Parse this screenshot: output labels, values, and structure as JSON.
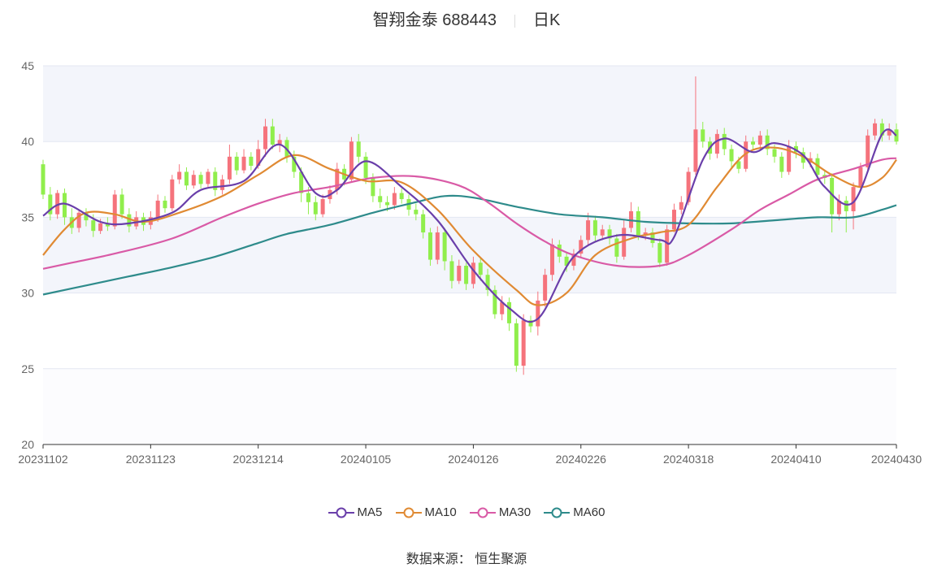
{
  "header": {
    "name": "智翔金泰 688443",
    "period": "日K"
  },
  "source_text": "数据来源： 恒生聚源",
  "colors": {
    "up": "#f5737c",
    "down": "#90ee4c",
    "MA5": "#6a3faa",
    "MA10": "#e08a33",
    "MA30": "#d95aa6",
    "MA60": "#2e8b8b",
    "band": "#f3f5fb",
    "grid": "#e3e7f2",
    "axis": "#333333"
  },
  "legend": [
    {
      "label": "MA5",
      "key": "MA5"
    },
    {
      "label": "MA10",
      "key": "MA10"
    },
    {
      "label": "MA30",
      "key": "MA30"
    },
    {
      "label": "MA60",
      "key": "MA60"
    }
  ],
  "chart_data": {
    "type": "candlestick",
    "ylim": [
      20,
      45
    ],
    "yticks": [
      20,
      25,
      30,
      35,
      40,
      45
    ],
    "xticks": [
      {
        "i": 0,
        "label": "20231102"
      },
      {
        "i": 15,
        "label": "20231123"
      },
      {
        "i": 30,
        "label": "20231214"
      },
      {
        "i": 45,
        "label": "20240105"
      },
      {
        "i": 60,
        "label": "20240126"
      },
      {
        "i": 75,
        "label": "20240226"
      },
      {
        "i": 90,
        "label": "20240318"
      },
      {
        "i": 105,
        "label": "20240410"
      },
      {
        "i": 119,
        "label": "20240430"
      }
    ],
    "count": 120,
    "candles": [
      [
        38.5,
        36.5,
        38.8,
        36.2
      ],
      [
        36.5,
        35.2,
        37.0,
        34.8
      ],
      [
        35.2,
        36.6,
        36.8,
        34.9
      ],
      [
        36.6,
        35.0,
        36.9,
        34.5
      ],
      [
        35.0,
        34.3,
        35.6,
        33.9
      ],
      [
        34.3,
        35.3,
        35.5,
        34.0
      ],
      [
        35.3,
        34.8,
        35.6,
        34.4
      ],
      [
        34.8,
        34.1,
        35.2,
        33.7
      ],
      [
        34.1,
        34.6,
        34.9,
        33.9
      ],
      [
        34.6,
        34.4,
        35.0,
        34.1
      ],
      [
        34.4,
        36.5,
        36.8,
        34.2
      ],
      [
        36.5,
        35.2,
        36.9,
        34.9
      ],
      [
        35.2,
        34.4,
        35.6,
        34.0
      ],
      [
        34.4,
        35.0,
        35.4,
        34.2
      ],
      [
        35.0,
        34.5,
        35.3,
        34.1
      ],
      [
        34.5,
        35.0,
        35.4,
        34.2
      ],
      [
        35.0,
        36.1,
        36.5,
        34.7
      ],
      [
        36.1,
        35.6,
        36.4,
        35.3
      ],
      [
        35.6,
        37.5,
        37.8,
        35.4
      ],
      [
        37.5,
        38.0,
        38.5,
        37.2
      ],
      [
        38.0,
        37.1,
        38.3,
        36.8
      ],
      [
        37.1,
        37.8,
        38.1,
        36.9
      ],
      [
        37.8,
        37.2,
        38.0,
        36.9
      ],
      [
        37.2,
        38.0,
        38.2,
        37.0
      ],
      [
        38.0,
        36.8,
        38.3,
        36.4
      ],
      [
        36.8,
        37.5,
        37.8,
        36.5
      ],
      [
        37.5,
        39.0,
        39.8,
        37.2
      ],
      [
        39.0,
        38.1,
        39.3,
        37.8
      ],
      [
        38.1,
        39.0,
        39.5,
        37.9
      ],
      [
        39.0,
        38.4,
        39.3,
        38.1
      ],
      [
        38.4,
        39.5,
        40.1,
        38.2
      ],
      [
        39.5,
        41.0,
        41.5,
        39.0
      ],
      [
        41.0,
        39.8,
        41.5,
        39.5
      ],
      [
        39.8,
        40.1,
        40.5,
        39.3
      ],
      [
        40.1,
        39.0,
        40.3,
        38.6
      ],
      [
        39.0,
        38.0,
        39.4,
        37.6
      ],
      [
        38.0,
        36.6,
        38.3,
        36.0
      ],
      [
        36.6,
        36.0,
        37.0,
        35.2
      ],
      [
        36.0,
        35.2,
        36.4,
        34.8
      ],
      [
        35.2,
        36.2,
        36.5,
        35.0
      ],
      [
        36.2,
        36.8,
        37.1,
        35.9
      ],
      [
        36.8,
        38.2,
        38.6,
        36.5
      ],
      [
        38.2,
        37.5,
        38.5,
        37.1
      ],
      [
        37.5,
        40.0,
        40.3,
        37.3
      ],
      [
        40.0,
        39.0,
        40.5,
        38.6
      ],
      [
        39.0,
        37.6,
        39.3,
        37.2
      ],
      [
        37.6,
        36.4,
        37.9,
        36.0
      ],
      [
        36.4,
        36.0,
        36.9,
        35.6
      ],
      [
        36.0,
        35.8,
        36.4,
        35.4
      ],
      [
        35.8,
        36.6,
        37.0,
        35.5
      ],
      [
        36.6,
        36.2,
        36.9,
        35.9
      ],
      [
        36.2,
        35.5,
        36.5,
        35.1
      ],
      [
        35.5,
        35.2,
        35.9,
        34.8
      ],
      [
        35.2,
        34.0,
        35.5,
        33.6
      ],
      [
        34.0,
        32.2,
        34.3,
        31.8
      ],
      [
        32.2,
        34.0,
        34.4,
        31.9
      ],
      [
        34.0,
        32.1,
        34.3,
        31.5
      ],
      [
        32.1,
        30.8,
        32.5,
        30.3
      ],
      [
        30.8,
        31.8,
        32.2,
        30.6
      ],
      [
        31.8,
        30.6,
        32.0,
        30.2
      ],
      [
        30.6,
        32.0,
        32.4,
        30.3
      ],
      [
        32.0,
        31.2,
        32.3,
        30.8
      ],
      [
        31.2,
        30.2,
        31.6,
        29.8
      ],
      [
        30.2,
        28.6,
        30.5,
        28.3
      ],
      [
        28.6,
        29.4,
        29.8,
        28.2
      ],
      [
        29.4,
        28.0,
        29.7,
        27.5
      ],
      [
        28.0,
        25.2,
        28.3,
        24.8
      ],
      [
        25.2,
        28.2,
        28.6,
        24.6
      ],
      [
        28.2,
        27.8,
        28.5,
        27.4
      ],
      [
        27.8,
        29.5,
        30.1,
        27.2
      ],
      [
        29.5,
        31.2,
        31.6,
        29.1
      ],
      [
        31.2,
        33.2,
        33.6,
        30.8
      ],
      [
        33.2,
        32.4,
        33.5,
        32.0
      ],
      [
        32.4,
        31.8,
        32.7,
        31.4
      ],
      [
        31.8,
        32.6,
        32.9,
        31.5
      ],
      [
        32.6,
        33.5,
        33.8,
        32.3
      ],
      [
        33.5,
        34.8,
        35.3,
        33.2
      ],
      [
        34.8,
        33.8,
        35.1,
        33.4
      ],
      [
        33.8,
        34.2,
        34.5,
        33.5
      ],
      [
        34.2,
        33.6,
        34.5,
        33.2
      ],
      [
        33.6,
        32.4,
        33.9,
        32.0
      ],
      [
        32.4,
        34.3,
        34.8,
        32.2
      ],
      [
        34.3,
        35.4,
        36.0,
        34.0
      ],
      [
        35.4,
        33.8,
        35.7,
        33.5
      ],
      [
        33.8,
        34.0,
        34.3,
        33.5
      ],
      [
        34.0,
        33.3,
        34.3,
        33.0
      ],
      [
        33.3,
        32.0,
        33.6,
        31.7
      ],
      [
        32.0,
        34.2,
        34.5,
        31.8
      ],
      [
        34.2,
        35.5,
        35.9,
        34.0
      ],
      [
        35.5,
        36.0,
        36.4,
        35.2
      ],
      [
        36.0,
        38.0,
        38.3,
        35.8
      ],
      [
        38.0,
        40.8,
        44.3,
        37.8
      ],
      [
        40.8,
        40.0,
        41.3,
        39.6
      ],
      [
        40.0,
        39.2,
        40.3,
        38.8
      ],
      [
        39.2,
        40.5,
        40.8,
        38.9
      ],
      [
        40.5,
        39.5,
        40.9,
        39.1
      ],
      [
        39.5,
        38.7,
        39.8,
        38.3
      ],
      [
        38.7,
        38.2,
        39.0,
        37.9
      ],
      [
        38.2,
        40.0,
        40.4,
        38.0
      ],
      [
        40.0,
        39.8,
        40.3,
        39.4
      ],
      [
        39.8,
        40.4,
        40.7,
        39.5
      ],
      [
        40.4,
        39.5,
        40.8,
        39.1
      ],
      [
        39.5,
        39.0,
        39.8,
        38.6
      ],
      [
        39.0,
        38.0,
        39.3,
        37.6
      ],
      [
        38.0,
        39.7,
        40.1,
        37.8
      ],
      [
        39.7,
        39.3,
        40.0,
        38.9
      ],
      [
        39.3,
        38.6,
        39.6,
        38.2
      ],
      [
        38.6,
        38.9,
        39.3,
        38.3
      ],
      [
        38.9,
        37.8,
        39.2,
        37.4
      ],
      [
        37.8,
        37.6,
        38.1,
        37.2
      ],
      [
        37.6,
        35.2,
        37.9,
        34.0
      ],
      [
        35.2,
        36.1,
        36.5,
        34.8
      ],
      [
        36.1,
        35.4,
        36.4,
        34.0
      ],
      [
        35.4,
        37.0,
        37.3,
        34.2
      ],
      [
        37.0,
        38.3,
        38.6,
        36.8
      ],
      [
        38.3,
        40.4,
        40.8,
        38.0
      ],
      [
        40.4,
        41.2,
        41.5,
        40.1
      ],
      [
        41.2,
        40.4,
        41.5,
        40.0
      ],
      [
        40.4,
        40.8,
        41.2,
        40.1
      ],
      [
        40.8,
        40.0,
        41.2,
        39.8
      ]
    ],
    "ma": {
      "MA5": [
        [
          0,
          35.1
        ],
        [
          3,
          35.9
        ],
        [
          8,
          34.7
        ],
        [
          12,
          34.6
        ],
        [
          18,
          35.3
        ],
        [
          22,
          36.8
        ],
        [
          28,
          37.4
        ],
        [
          33,
          39.8
        ],
        [
          38,
          36.6
        ],
        [
          41,
          36.8
        ],
        [
          45,
          38.7
        ],
        [
          50,
          37.0
        ],
        [
          55,
          34.8
        ],
        [
          60,
          31.5
        ],
        [
          65,
          29.0
        ],
        [
          69,
          28.3
        ],
        [
          74,
          32.4
        ],
        [
          80,
          33.8
        ],
        [
          86,
          33.5
        ],
        [
          88,
          33.7
        ],
        [
          92,
          38.8
        ],
        [
          95,
          40.2
        ],
        [
          99,
          39.3
        ],
        [
          102,
          39.9
        ],
        [
          106,
          39.1
        ],
        [
          109,
          37.0
        ],
        [
          113,
          36.0
        ],
        [
          117,
          40.5
        ],
        [
          119,
          40.4
        ]
      ],
      "MA10": [
        [
          0,
          32.5
        ],
        [
          3,
          34.2
        ],
        [
          6,
          35.3
        ],
        [
          10,
          35.2
        ],
        [
          14,
          34.7
        ],
        [
          19,
          35.3
        ],
        [
          25,
          36.4
        ],
        [
          30,
          37.8
        ],
        [
          35,
          39.1
        ],
        [
          40,
          38.2
        ],
        [
          45,
          37.4
        ],
        [
          50,
          37.3
        ],
        [
          55,
          35.5
        ],
        [
          60,
          32.8
        ],
        [
          66,
          30.2
        ],
        [
          69,
          29.2
        ],
        [
          73,
          30.0
        ],
        [
          77,
          32.5
        ],
        [
          82,
          33.6
        ],
        [
          86,
          34.0
        ],
        [
          90,
          34.5
        ],
        [
          94,
          37.0
        ],
        [
          98,
          39.2
        ],
        [
          102,
          39.6
        ],
        [
          106,
          39.0
        ],
        [
          110,
          37.8
        ],
        [
          114,
          37.0
        ],
        [
          117,
          37.6
        ],
        [
          119,
          38.8
        ]
      ],
      "MA30": [
        [
          0,
          31.6
        ],
        [
          4,
          32.0
        ],
        [
          10,
          32.6
        ],
        [
          18,
          33.6
        ],
        [
          25,
          35.0
        ],
        [
          30,
          35.9
        ],
        [
          35,
          36.6
        ],
        [
          40,
          37.0
        ],
        [
          46,
          37.6
        ],
        [
          52,
          37.7
        ],
        [
          58,
          37.1
        ],
        [
          62,
          36.0
        ],
        [
          66,
          34.6
        ],
        [
          70,
          33.4
        ],
        [
          74,
          32.5
        ],
        [
          80,
          31.8
        ],
        [
          86,
          31.8
        ],
        [
          90,
          32.5
        ],
        [
          96,
          34.2
        ],
        [
          100,
          35.5
        ],
        [
          104,
          36.5
        ],
        [
          108,
          37.5
        ],
        [
          113,
          38.2
        ],
        [
          117,
          38.8
        ],
        [
          119,
          38.9
        ]
      ],
      "MA60": [
        [
          0,
          29.9
        ],
        [
          6,
          30.5
        ],
        [
          12,
          31.1
        ],
        [
          18,
          31.7
        ],
        [
          24,
          32.4
        ],
        [
          30,
          33.3
        ],
        [
          34,
          33.9
        ],
        [
          40,
          34.5
        ],
        [
          46,
          35.3
        ],
        [
          52,
          36.0
        ],
        [
          56,
          36.4
        ],
        [
          60,
          36.3
        ],
        [
          66,
          35.7
        ],
        [
          72,
          35.2
        ],
        [
          78,
          35.0
        ],
        [
          84,
          34.7
        ],
        [
          90,
          34.6
        ],
        [
          96,
          34.6
        ],
        [
          102,
          34.8
        ],
        [
          108,
          35.0
        ],
        [
          113,
          35.0
        ],
        [
          117,
          35.5
        ],
        [
          119,
          35.8
        ]
      ]
    }
  }
}
